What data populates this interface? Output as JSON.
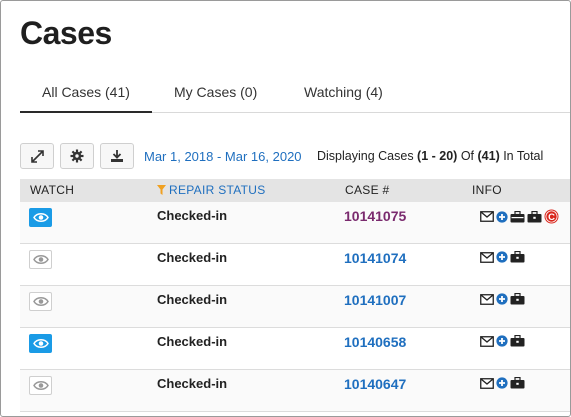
{
  "page": {
    "title": "Cases"
  },
  "tabs": [
    {
      "label": "All Cases (41)",
      "active": true
    },
    {
      "label": "My Cases (0)",
      "active": false
    },
    {
      "label": "Watching (4)",
      "active": false
    }
  ],
  "toolbar": {
    "expand_icon": "expand-icon",
    "settings_icon": "gear-icon",
    "download_icon": "download-icon",
    "date_range": "Mar 1, 2018 - Mar 16, 2020",
    "displaying_prefix": "Displaying Cases ",
    "displaying_range": "(1 - 20)",
    "displaying_mid": " Of ",
    "displaying_total": "(41)",
    "displaying_suffix": " In Total"
  },
  "table": {
    "headers": {
      "watch": "WATCH",
      "repair_status": "REPAIR STATUS",
      "case_number": "CASE #",
      "info": "INFO"
    },
    "rows": [
      {
        "watching": true,
        "status": "Checked-in",
        "case_number": "10141075",
        "visited": true,
        "info_icons": [
          "envelope-icon",
          "plus-circle-icon",
          "toolbox-icon",
          "briefcase-icon",
          "c-badge-icon"
        ]
      },
      {
        "watching": false,
        "status": "Checked-in",
        "case_number": "10141074",
        "visited": false,
        "info_icons": [
          "envelope-icon",
          "plus-circle-icon",
          "briefcase-icon"
        ]
      },
      {
        "watching": false,
        "status": "Checked-in",
        "case_number": "10141007",
        "visited": false,
        "info_icons": [
          "envelope-icon",
          "plus-circle-icon",
          "briefcase-icon"
        ]
      },
      {
        "watching": true,
        "status": "Checked-in",
        "case_number": "10140658",
        "visited": false,
        "info_icons": [
          "envelope-icon",
          "plus-circle-icon",
          "briefcase-icon"
        ]
      },
      {
        "watching": false,
        "status": "Checked-in",
        "case_number": "10140647",
        "visited": false,
        "info_icons": [
          "envelope-icon",
          "plus-circle-icon",
          "briefcase-icon"
        ]
      }
    ]
  },
  "colors": {
    "accent": "#1f6fbf",
    "watch_on": "#1a9be6",
    "visited_link": "#7a2a6e",
    "sort_filter": "#f0a020",
    "c_badge": "#d9261c"
  }
}
